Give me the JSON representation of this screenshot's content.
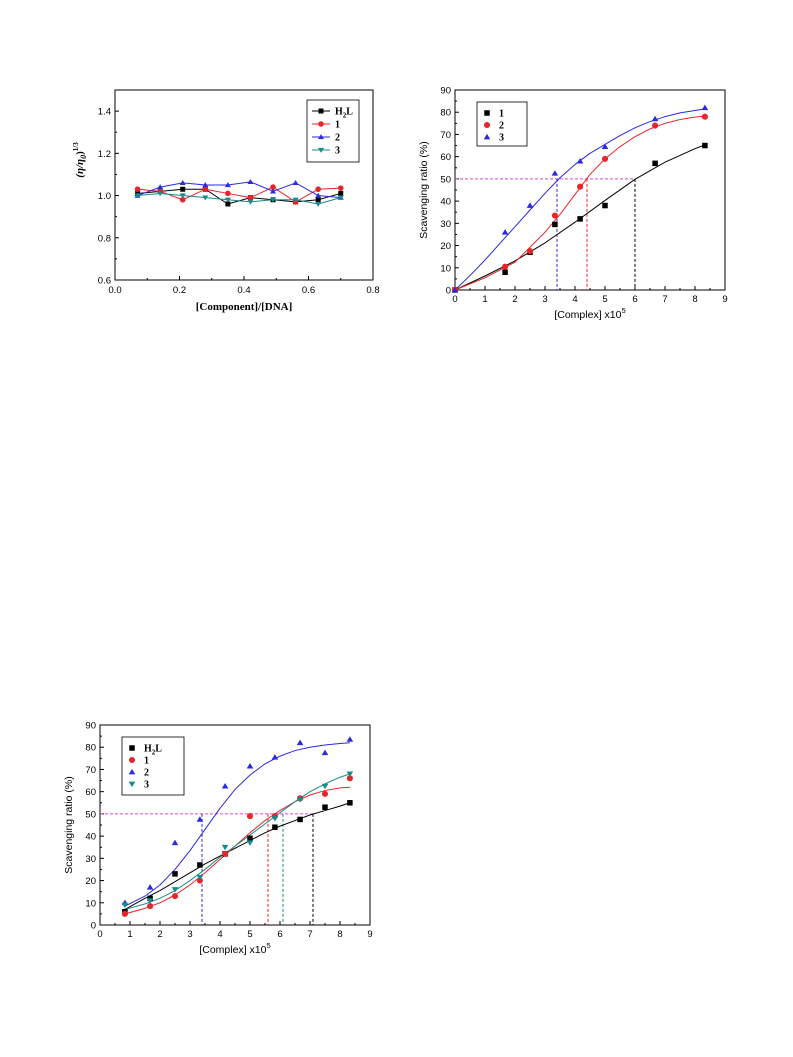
{
  "chart_data": [
    {
      "id": "viscosity",
      "type": "line",
      "xlabel": "[Component]/[DNA]",
      "ylabel": "(η/η0)^1/3",
      "ylabel_main": "(η/η",
      "ylabel_sub": "0",
      "ylabel_end": ")",
      "ylabel_sup": "1/3",
      "xlim": [
        0.0,
        0.8
      ],
      "ylim": [
        0.6,
        1.5
      ],
      "xticks": [
        "0.0",
        "0.2",
        "0.4",
        "0.6",
        "0.8"
      ],
      "yticks": [
        "0.6",
        "0.8",
        "1.0",
        "1.2",
        "1.4"
      ],
      "legend_position": "top-right",
      "x": [
        0.07,
        0.14,
        0.21,
        0.28,
        0.35,
        0.42,
        0.49,
        0.56,
        0.63,
        0.7
      ],
      "series": [
        {
          "name": "H2L",
          "name_main": "H",
          "name_sub": "2",
          "name_end": "L",
          "color": "#000000",
          "marker": "square",
          "values": [
            1.01,
            1.02,
            1.03,
            1.03,
            0.96,
            0.99,
            0.98,
            0.97,
            0.98,
            1.01
          ]
        },
        {
          "name": "1",
          "color": "#e8252b",
          "marker": "circle",
          "values": [
            1.03,
            1.02,
            0.98,
            1.03,
            1.01,
            0.99,
            1.04,
            0.97,
            1.03,
            1.035
          ]
        },
        {
          "name": "2",
          "color": "#2a2ae0",
          "marker": "triangle-up",
          "values": [
            1.0,
            1.04,
            1.06,
            1.05,
            1.05,
            1.065,
            1.02,
            1.06,
            1.0,
            0.99
          ]
        },
        {
          "name": "3",
          "color": "#1a8a8a",
          "marker": "triangle-down",
          "values": [
            1.0,
            1.01,
            1.0,
            0.99,
            0.98,
            0.97,
            0.98,
            0.98,
            0.96,
            0.99
          ]
        }
      ]
    },
    {
      "id": "scavenging-top",
      "type": "scatter",
      "xlabel": "[Complex] x10",
      "xlabel_sup": "5",
      "ylabel": "Scavenging ratio (%)",
      "xlim": [
        0,
        9
      ],
      "ylim": [
        0,
        90
      ],
      "xticks": [
        "0",
        "1",
        "2",
        "3",
        "4",
        "5",
        "6",
        "7",
        "8",
        "9"
      ],
      "yticks": [
        "0",
        "10",
        "20",
        "30",
        "40",
        "50",
        "60",
        "70",
        "80",
        "90"
      ],
      "legend_position": "top-left",
      "series": [
        {
          "name": "1",
          "color": "#000000",
          "marker": "square",
          "x": [
            0,
            1.67,
            2.5,
            3.33,
            4.17,
            5.0,
            6.67,
            8.33
          ],
          "values": [
            0,
            8,
            17,
            29.5,
            32,
            38,
            57,
            65
          ],
          "fit_x": [
            0,
            1,
            2,
            3,
            4,
            5,
            6,
            7,
            8,
            8.33
          ],
          "fit_y": [
            0,
            6.3,
            13.1,
            21.2,
            30.5,
            40.3,
            49.8,
            57.5,
            63.6,
            65.3
          ],
          "ic50": 6.0
        },
        {
          "name": "2",
          "color": "#e8252b",
          "marker": "circle",
          "x": [
            0,
            1.67,
            2.5,
            3.33,
            4.17,
            5.0,
            6.67,
            8.33
          ],
          "values": [
            0,
            10.5,
            17.5,
            33.5,
            46.5,
            59,
            74,
            78
          ],
          "fit_x": [
            0,
            1,
            2,
            3,
            3.5,
            4,
            4.5,
            5,
            5.5,
            6,
            6.5,
            7,
            7.5,
            8,
            8.33
          ],
          "fit_y": [
            0,
            5.5,
            12.5,
            26,
            34,
            43,
            52,
            59,
            64.5,
            69,
            72.5,
            75,
            76.7,
            77.8,
            78.3
          ],
          "ic50": 4.4
        },
        {
          "name": "3",
          "color": "#2a2ae0",
          "marker": "triangle-up",
          "x": [
            0,
            1.67,
            2.5,
            3.33,
            4.17,
            5.0,
            6.67,
            8.33
          ],
          "values": [
            0,
            26,
            38,
            52.5,
            58,
            64.5,
            77,
            82
          ],
          "fit_x": [
            0,
            0.5,
            1,
            1.5,
            2,
            2.5,
            3,
            3.5,
            4,
            4.5,
            5,
            5.5,
            6,
            6.5,
            7,
            7.5,
            8,
            8.33
          ],
          "fit_y": [
            0,
            6.5,
            13.5,
            21,
            28.5,
            36,
            43.5,
            50.5,
            56.5,
            61.5,
            65.5,
            69.5,
            73,
            75.8,
            78,
            79.7,
            80.8,
            81.5
          ],
          "ic50": 3.4
        }
      ],
      "threshold": 50
    },
    {
      "id": "scavenging-bottom",
      "type": "scatter",
      "xlabel": "[Complex] x10",
      "xlabel_sup": "5",
      "ylabel": "Scavenging ratio (%)",
      "xlim": [
        0,
        9
      ],
      "ylim": [
        0,
        90
      ],
      "xticks": [
        "0",
        "1",
        "2",
        "3",
        "4",
        "5",
        "6",
        "7",
        "8",
        "9"
      ],
      "yticks": [
        "0",
        "10",
        "20",
        "30",
        "40",
        "50",
        "60",
        "70",
        "80",
        "90"
      ],
      "legend_position": "top-left",
      "series": [
        {
          "name": "H2L",
          "name_main": "H",
          "name_sub": "2",
          "name_end": "L",
          "color": "#000000",
          "marker": "square",
          "x": [
            0.83,
            1.67,
            2.5,
            3.33,
            4.17,
            5.0,
            5.83,
            6.67,
            7.5,
            8.33
          ],
          "values": [
            6,
            12,
            23,
            27,
            32,
            39,
            44,
            47.5,
            53,
            55
          ],
          "fit_x": [
            0.83,
            1.5,
            2,
            2.5,
            3,
            3.5,
            4,
            4.5,
            5,
            5.5,
            6,
            6.5,
            7,
            7.5,
            8,
            8.33
          ],
          "fit_y": [
            7,
            12,
            15.5,
            19.5,
            23.5,
            27.5,
            31,
            34.5,
            38,
            41.5,
            44.5,
            47,
            49.5,
            51.5,
            53.5,
            55
          ],
          "ic50": 7.1
        },
        {
          "name": "1",
          "color": "#e8252b",
          "marker": "circle",
          "x": [
            0.83,
            1.67,
            2.5,
            3.33,
            4.17,
            5.0,
            5.83,
            6.67,
            7.5,
            8.33
          ],
          "values": [
            5,
            8.5,
            13,
            20,
            32,
            49,
            49,
            57,
            59,
            66
          ],
          "fit_x": [
            0.83,
            1.5,
            2,
            2.5,
            3,
            3.5,
            4,
            4.5,
            5,
            5.5,
            6,
            6.5,
            7,
            7.5,
            8,
            8.33
          ],
          "fit_y": [
            5,
            7.5,
            10,
            13.5,
            18,
            23.5,
            29.5,
            35.5,
            41.5,
            47,
            51.5,
            55.5,
            58.5,
            60.5,
            61.7,
            62
          ],
          "ic50": 5.6
        },
        {
          "name": "2",
          "color": "#2a2ae0",
          "marker": "triangle-up",
          "x": [
            0.83,
            1.67,
            2.5,
            3.33,
            4.17,
            5.0,
            5.83,
            6.67,
            7.5,
            8.33
          ],
          "values": [
            10,
            17,
            37,
            47.5,
            62.5,
            71.5,
            75.5,
            82,
            77.5,
            83.5
          ],
          "fit_x": [
            0.83,
            1.5,
            2,
            2.5,
            3,
            3.5,
            4,
            4.5,
            5,
            5.5,
            6,
            6.5,
            7,
            7.5,
            8,
            8.33
          ],
          "fit_y": [
            8.5,
            13,
            18,
            25,
            33.5,
            43,
            52.5,
            61,
            67.5,
            72.5,
            76,
            78.5,
            80,
            81,
            81.7,
            82
          ],
          "ic50": 3.4
        },
        {
          "name": "3",
          "color": "#1a8a8a",
          "marker": "triangle-down",
          "x": [
            0.83,
            1.67,
            2.5,
            3.33,
            4.17,
            5.0,
            5.83,
            6.67,
            7.5,
            8.33
          ],
          "values": [
            9,
            11,
            16,
            21.5,
            35,
            37,
            48,
            56.5,
            62.5,
            68
          ],
          "fit_x": [
            0.83,
            1.5,
            2,
            2.5,
            3,
            3.5,
            4,
            4.5,
            5,
            5.5,
            6,
            6.5,
            7,
            7.5,
            8,
            8.33
          ],
          "fit_y": [
            7,
            9.5,
            12,
            15.5,
            20,
            25,
            30.5,
            35.5,
            40.5,
            45.5,
            50.5,
            55.5,
            60,
            63.5,
            66.5,
            68
          ],
          "ic50": 6.1
        }
      ],
      "threshold": 50
    }
  ]
}
